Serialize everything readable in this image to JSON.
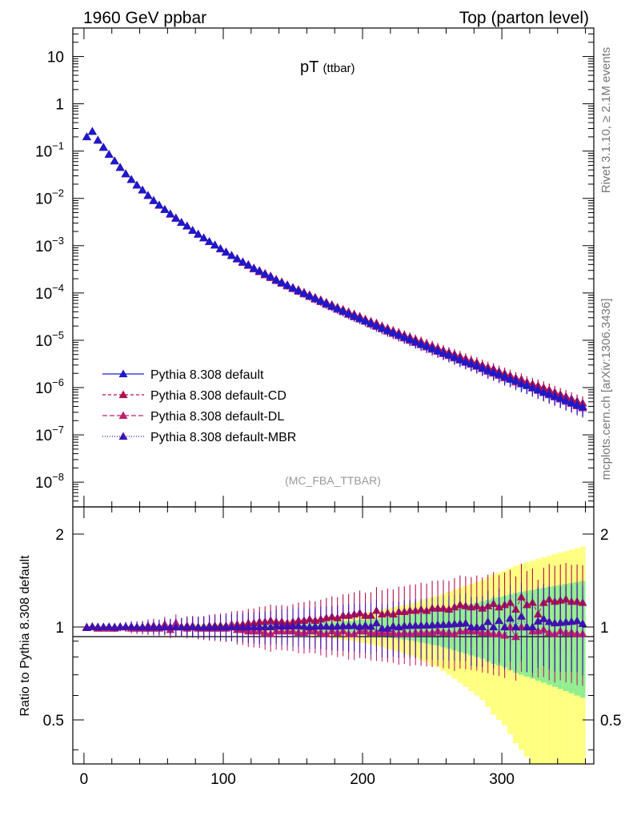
{
  "header": {
    "left": "1960 GeV ppbar",
    "right": "Top (parton level)"
  },
  "side_labels": {
    "rivet": "Rivet 3.1.10, ≥ 2.1M events",
    "mcplots": "mcplots.cern.ch [arXiv:1306.3436]"
  },
  "chart_data": [
    {
      "type": "scatter",
      "title_main": "pT",
      "title_sub": "(ttbar)",
      "watermark": "(MC_FBA_TTBAR)",
      "yscale": "log",
      "xlim": [
        -8,
        366
      ],
      "ylim": [
        3e-09,
        40
      ],
      "y_tick_labels": [
        "10",
        "1",
        "10^-1",
        "10^-2",
        "10^-3",
        "10^-4",
        "10^-5",
        "10^-6",
        "10^-7",
        "10^-8"
      ],
      "legend_position": "lower-left",
      "x": [
        2,
        6,
        10,
        14,
        18,
        22,
        26,
        30,
        34,
        38,
        42,
        46,
        50,
        54,
        58,
        62,
        66,
        70,
        74,
        78,
        82,
        86,
        90,
        94,
        98,
        102,
        106,
        110,
        114,
        118,
        122,
        126,
        130,
        134,
        138,
        142,
        146,
        150,
        154,
        158,
        162,
        166,
        170,
        174,
        178,
        182,
        186,
        190,
        194,
        198,
        202,
        206,
        210,
        214,
        218,
        222,
        226,
        230,
        234,
        238,
        242,
        246,
        250,
        254,
        258,
        262,
        266,
        270,
        274,
        278,
        282,
        286,
        290,
        294,
        298,
        302,
        306,
        310,
        314,
        318,
        322,
        326,
        330,
        334,
        338,
        342,
        346,
        350,
        354,
        358
      ],
      "series": [
        {
          "name": "Pythia 8.308 default",
          "color": "#1a1acc",
          "marker": "triangle",
          "dash": "solid",
          "values": [
            0.2,
            0.26,
            0.17,
            0.12,
            0.085,
            0.062,
            0.045,
            0.033,
            0.025,
            0.019,
            0.015,
            0.0115,
            0.009,
            0.0072,
            0.0058,
            0.0047,
            0.0038,
            0.0031,
            0.0026,
            0.0021,
            0.00175,
            0.00146,
            0.00122,
            0.00103,
            0.00086,
            0.00073,
            0.00062,
            0.00053,
            0.00045,
            0.00039,
            0.00033,
            0.00029,
            0.00025,
            0.00022,
            0.000188,
            0.000165,
            0.000145,
            0.000127,
            0.000112,
            9.85e-05,
            8.68e-05,
            7.66e-05,
            6.76e-05,
            5.97e-05,
            5.28e-05,
            4.67e-05,
            4.14e-05,
            3.67e-05,
            3.26e-05,
            2.89e-05,
            2.57e-05,
            2.29e-05,
            2.04e-05,
            1.82e-05,
            1.62e-05,
            1.45e-05,
            1.3e-05,
            1.16e-05,
            1.04e-05,
            9.3e-06,
            8.3e-06,
            7.5e-06,
            6.7e-06,
            6e-06,
            5.4e-06,
            4.9e-06,
            4.4e-06,
            3.9e-06,
            3.5e-06,
            3.2e-06,
            2.9e-06,
            2.6e-06,
            2.3e-06,
            2.1e-06,
            1.9e-06,
            1.7e-06,
            1.5e-06,
            1.4e-06,
            1.2e-06,
            1.1e-06,
            1e-06,
            9e-07,
            8e-07,
            7.3e-07,
            6.6e-07,
            5.9e-07,
            5.3e-07,
            4.8e-07,
            4.3e-07,
            3.9e-07
          ]
        },
        {
          "name": "Pythia 8.308 default-CD",
          "color": "#b01050",
          "marker": "triangle",
          "dash": "4,3",
          "values": [
            0.2,
            0.262,
            0.169,
            0.121,
            0.0855,
            0.0618,
            0.0452,
            0.0331,
            0.0251,
            0.0191,
            0.0151,
            0.0114,
            0.0091,
            0.0072,
            0.0058,
            0.0047,
            0.0038,
            0.0031,
            0.00262,
            0.0021,
            0.00176,
            0.00147,
            0.00121,
            0.00104,
            0.00087,
            0.00074,
            0.00062,
            0.00054,
            0.00046,
            0.0004,
            0.00034,
            0.0003,
            0.00026,
            0.00023,
            0.000195,
            0.000172,
            0.00015,
            0.000132,
            0.000118,
            0.000104,
            9.2e-05,
            8.1e-05,
            7.2e-05,
            6.4e-05,
            5.7e-05,
            5e-05,
            4.5e-05,
            4e-05,
            3.6e-05,
            3.2e-05,
            2.8e-05,
            2.5e-05,
            2.3e-05,
            2e-05,
            1.8e-05,
            1.6e-05,
            1.45e-05,
            1.3e-05,
            1.17e-05,
            1.05e-05,
            9.5e-06,
            8.5e-06,
            7.7e-06,
            6.9e-06,
            6.2e-06,
            5.6e-06,
            5.1e-06,
            4.6e-06,
            4.1e-06,
            3.7e-06,
            3.4e-06,
            3e-06,
            2.7e-06,
            2.5e-06,
            2.2e-06,
            2e-06,
            1.8e-06,
            1.6e-06,
            1.5e-06,
            1.3e-06,
            1.2e-06,
            1.1e-06,
            1e-06,
            9e-07,
            8e-07,
            7.2e-07,
            6.5e-07,
            5.8e-07,
            5.2e-07,
            4.7e-07
          ]
        },
        {
          "name": "Pythia 8.308 default-DL",
          "color": "#c0206e",
          "marker": "triangle",
          "dash": "6,3",
          "values": [
            0.201,
            0.259,
            0.171,
            0.119,
            0.0845,
            0.0622,
            0.0448,
            0.0329,
            0.0249,
            0.0189,
            0.0149,
            0.0116,
            0.0089,
            0.0071,
            0.0059,
            0.0046,
            0.0039,
            0.0031,
            0.00258,
            0.00212,
            0.00174,
            0.00145,
            0.00123,
            0.00102,
            0.00085,
            0.00072,
            0.00063,
            0.00052,
            0.00044,
            0.00038,
            0.00032,
            0.00028,
            0.00024,
            0.00021,
            0.000182,
            0.00016,
            0.00014,
            0.000123,
            0.000108,
            9.5e-05,
            8.4e-05,
            7.4e-05,
            6.5e-05,
            5.7e-05,
            5.1e-05,
            4.5e-05,
            4e-05,
            3.5e-05,
            3.1e-05,
            2.8e-05,
            2.5e-05,
            2.2e-05,
            1.95e-05,
            1.74e-05,
            1.55e-05,
            1.39e-05,
            1.24e-05,
            1.11e-05,
            9.9e-06,
            8.9e-06,
            8e-06,
            7.2e-06,
            6.4e-06,
            5.8e-06,
            5.2e-06,
            4.7e-06,
            4.2e-06,
            3.8e-06,
            3.4e-06,
            3.1e-06,
            2.8e-06,
            2.5e-06,
            2.2e-06,
            2e-06,
            1.8e-06,
            1.6e-06,
            1.5e-06,
            1.3e-06,
            1.2e-06,
            1.1e-06,
            9.7e-07,
            8.7e-07,
            7.8e-07,
            7e-07,
            6.3e-07,
            5.7e-07,
            5.1e-07,
            4.6e-07,
            4.1e-07,
            3.7e-07
          ]
        },
        {
          "name": "Pythia 8.308 default-MBR",
          "color": "#4010b0",
          "marker": "triangle",
          "dash": "1,2",
          "values": [
            0.199,
            0.261,
            0.17,
            0.12,
            0.0852,
            0.0619,
            0.0451,
            0.0331,
            0.0251,
            0.019,
            0.015,
            0.0115,
            0.009,
            0.0072,
            0.0058,
            0.0047,
            0.0038,
            0.0031,
            0.0026,
            0.0021,
            0.00175,
            0.00146,
            0.00122,
            0.00103,
            0.00086,
            0.00073,
            0.00062,
            0.00053,
            0.00045,
            0.00039,
            0.00033,
            0.00029,
            0.00025,
            0.00022,
            0.00019,
            0.000166,
            0.000146,
            0.000128,
            0.000113,
            9.9e-05,
            8.7e-05,
            7.7e-05,
            6.8e-05,
            6e-05,
            5.3e-05,
            4.7e-05,
            4.2e-05,
            3.7e-05,
            3.3e-05,
            2.9e-05,
            2.6e-05,
            2.3e-05,
            2.1e-05,
            1.8e-05,
            1.6e-05,
            1.46e-05,
            1.3e-05,
            1.17e-05,
            1.05e-05,
            9.4e-06,
            8.4e-06,
            7.6e-06,
            6.8e-06,
            6.1e-06,
            5.5e-06,
            5e-06,
            4.5e-06,
            4e-06,
            3.6e-06,
            3.2e-06,
            2.9e-06,
            2.6e-06,
            2.4e-06,
            2.1e-06,
            1.9e-06,
            1.7e-06,
            1.6e-06,
            1.4e-06,
            1.3e-06,
            1.1e-06,
            1e-06,
            9.4e-07,
            8.5e-07,
            7.6e-07,
            6.8e-07,
            6.1e-07,
            5.5e-07,
            5e-07,
            4.5e-07,
            4e-07
          ]
        }
      ]
    },
    {
      "type": "scatter",
      "ylabel": "Ratio to Pythia 8.308 default",
      "yscale": "log",
      "xlim": [
        -8,
        366
      ],
      "ylim": [
        0.36,
        2.45
      ],
      "y_tick_labels": [
        "2",
        "1",
        "0.5"
      ],
      "x_tick_labels": [
        "0",
        "100",
        "200",
        "300"
      ],
      "band_colors": {
        "outer": "#ffff80",
        "inner": "#90ee90"
      },
      "band_outer_halfwidth": [
        0.01,
        0.01,
        0.01,
        0.01,
        0.01,
        0.01,
        0.01,
        0.01,
        0.012,
        0.012,
        0.013,
        0.013,
        0.014,
        0.014,
        0.015,
        0.015,
        0.016,
        0.017,
        0.018,
        0.018,
        0.02,
        0.021,
        0.022,
        0.023,
        0.025,
        0.026,
        0.028,
        0.03,
        0.032,
        0.034,
        0.036,
        0.038,
        0.04,
        0.042,
        0.045,
        0.048,
        0.05,
        0.053,
        0.056,
        0.06,
        0.063,
        0.066,
        0.07,
        0.075,
        0.08,
        0.085,
        0.09,
        0.095,
        0.1,
        0.11,
        0.115,
        0.12,
        0.13,
        0.14,
        0.15,
        0.16,
        0.17,
        0.18,
        0.19,
        0.2,
        0.22,
        0.23,
        0.25,
        0.26,
        0.28,
        0.3,
        0.32,
        0.34,
        0.36,
        0.38,
        0.4,
        0.42,
        0.45,
        0.48,
        0.5,
        0.52,
        0.55,
        0.58,
        0.6,
        0.62,
        0.64,
        0.66,
        0.68,
        0.7,
        0.72,
        0.74,
        0.76,
        0.78,
        0.8,
        0.82
      ],
      "band_inner_halfwidth": [
        0.005,
        0.005,
        0.005,
        0.005,
        0.005,
        0.005,
        0.005,
        0.005,
        0.006,
        0.006,
        0.006,
        0.006,
        0.007,
        0.007,
        0.007,
        0.008,
        0.008,
        0.008,
        0.009,
        0.009,
        0.01,
        0.01,
        0.011,
        0.011,
        0.012,
        0.013,
        0.014,
        0.015,
        0.016,
        0.017,
        0.018,
        0.019,
        0.02,
        0.021,
        0.022,
        0.024,
        0.025,
        0.026,
        0.028,
        0.03,
        0.031,
        0.033,
        0.035,
        0.037,
        0.04,
        0.042,
        0.045,
        0.047,
        0.05,
        0.055,
        0.057,
        0.06,
        0.065,
        0.07,
        0.075,
        0.08,
        0.085,
        0.09,
        0.095,
        0.1,
        0.11,
        0.115,
        0.125,
        0.13,
        0.14,
        0.15,
        0.16,
        0.17,
        0.18,
        0.19,
        0.2,
        0.21,
        0.225,
        0.24,
        0.25,
        0.26,
        0.275,
        0.29,
        0.3,
        0.31,
        0.32,
        0.33,
        0.34,
        0.35,
        0.36,
        0.37,
        0.38,
        0.39,
        0.4,
        0.41
      ],
      "series": [
        {
          "name": "Pythia 8.308 default-CD",
          "color": "#b01050",
          "dash": "4,3",
          "values": [
            1.0,
            1.0,
            0.99,
            1.0,
            1.0,
            0.99,
            1.0,
            1.0,
            1.0,
            1.0,
            1.0,
            0.99,
            1.01,
            1.0,
            1.0,
            1.0,
            1.0,
            1.0,
            1.01,
            1.0,
            1.0,
            1.0,
            0.99,
            1.01,
            1.01,
            1.01,
            1.0,
            1.02,
            1.02,
            1.03,
            1.03,
            1.04,
            1.04,
            1.05,
            1.04,
            1.04,
            1.03,
            1.04,
            1.05,
            1.05,
            1.06,
            1.05,
            1.06,
            1.07,
            1.08,
            1.07,
            1.09,
            1.09,
            1.1,
            1.11,
            1.09,
            1.09,
            1.13,
            1.1,
            1.11,
            1.1,
            1.12,
            1.12,
            1.13,
            1.13,
            1.14,
            1.13,
            1.15,
            1.15,
            1.15,
            1.14,
            1.16,
            1.18,
            1.17,
            1.16,
            1.17,
            1.15,
            1.17,
            1.19,
            1.16,
            1.18,
            1.2,
            1.14,
            1.25,
            1.18,
            1.2,
            1.1,
            1.2,
            1.23,
            1.21,
            1.22,
            1.23,
            1.21,
            1.21,
            1.2
          ]
        },
        {
          "name": "Pythia 8.308 default-DL",
          "color": "#c0206e",
          "dash": "6,3",
          "values": [
            1.0,
            1.0,
            1.0,
            0.99,
            0.99,
            1.0,
            1.0,
            1.0,
            0.99,
            0.99,
            0.99,
            1.01,
            0.99,
            0.99,
            1.02,
            0.98,
            1.03,
            1.0,
            0.99,
            1.01,
            0.99,
            0.99,
            1.01,
            0.99,
            0.99,
            0.99,
            1.02,
            0.98,
            0.98,
            0.97,
            0.97,
            0.97,
            0.96,
            0.95,
            0.97,
            0.97,
            0.97,
            0.97,
            0.96,
            0.96,
            0.97,
            0.97,
            0.96,
            0.95,
            0.97,
            0.96,
            0.97,
            0.95,
            0.95,
            0.97,
            0.97,
            0.96,
            0.96,
            0.96,
            0.96,
            0.96,
            0.95,
            0.96,
            0.95,
            0.96,
            0.96,
            0.96,
            0.96,
            0.97,
            0.96,
            0.96,
            0.95,
            0.97,
            0.97,
            0.97,
            0.97,
            0.96,
            0.96,
            0.95,
            0.95,
            0.94,
            1.0,
            0.93,
            1.0,
            1.0,
            0.97,
            0.97,
            0.98,
            0.96,
            0.95,
            0.97,
            0.96,
            0.96,
            0.95,
            0.95
          ]
        },
        {
          "name": "Pythia 8.308 default-MBR",
          "color": "#4010b0",
          "dash": "1,2",
          "values": [
            0.995,
            1.004,
            1.0,
            1.0,
            1.002,
            0.998,
            1.002,
            1.003,
            1.004,
            1.0,
            1.0,
            1.0,
            1.0,
            1.0,
            1.0,
            1.0,
            1.0,
            1.0,
            1.0,
            1.0,
            1.0,
            1.0,
            1.0,
            1.0,
            1.0,
            1.0,
            1.0,
            1.0,
            1.0,
            1.0,
            1.0,
            1.0,
            1.0,
            1.0,
            1.01,
            1.006,
            1.007,
            1.008,
            1.009,
            1.005,
            1.0,
            1.005,
            1.006,
            1.005,
            1.004,
            1.006,
            1.01,
            1.008,
            1.012,
            1.003,
            1.012,
            1.004,
            1.03,
            0.99,
            0.99,
            1.007,
            1.0,
            1.009,
            1.01,
            1.011,
            1.012,
            1.013,
            1.015,
            1.017,
            1.019,
            1.02,
            1.023,
            1.026,
            1.029,
            1.0,
            1.0,
            1.0,
            1.04,
            1.0,
            1.05,
            1.0,
            1.067,
            1.0,
            1.083,
            1.0,
            1.0,
            1.044,
            1.063,
            1.041,
            1.03,
            1.033,
            1.038,
            1.042,
            1.047,
            1.026
          ]
        }
      ]
    }
  ]
}
